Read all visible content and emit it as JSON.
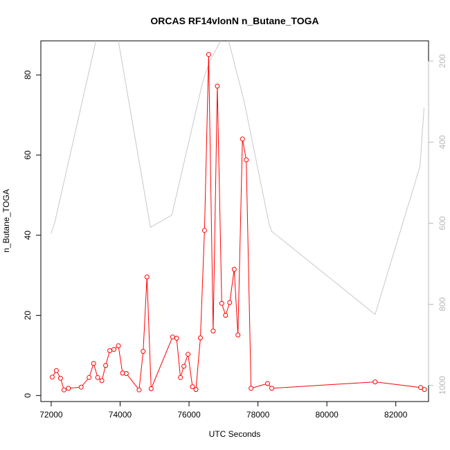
{
  "chart_data": {
    "type": "line",
    "title": "ORCAS RF14vlonN n_Butane_TOGA",
    "xlabel": "UTC Seconds",
    "ylabel": "n_Butane_TOGA",
    "xlim": [
      71700,
      82950
    ],
    "ylim": [
      -1.5,
      88.5
    ],
    "x_ticks": [
      72000,
      74000,
      76000,
      78000,
      80000,
      82000
    ],
    "y_ticks": [
      0,
      20,
      40,
      60,
      80
    ],
    "grid": false,
    "legend": "none",
    "series": [
      {
        "axis": "left",
        "color": "#ff0000",
        "marker": "open-circle",
        "x": [
          72030,
          72150,
          72270,
          72370,
          72500,
          72870,
          73100,
          73230,
          73350,
          73470,
          73580,
          73700,
          73820,
          73950,
          74070,
          74180,
          74550,
          74670,
          74780,
          74900,
          75520,
          75640,
          75750,
          75850,
          75970,
          76100,
          76200,
          76330,
          76450,
          76570,
          76700,
          76820,
          76950,
          77060,
          77180,
          77310,
          77420,
          77550,
          77660,
          77800,
          78280,
          78400,
          81400,
          82720,
          82830
        ],
        "y": [
          4.6,
          6.2,
          4.3,
          1.4,
          1.8,
          2.1,
          4.5,
          8.0,
          4.5,
          3.7,
          7.5,
          11.2,
          11.5,
          12.4,
          5.6,
          5.5,
          1.4,
          11.0,
          29.6,
          1.7,
          14.6,
          14.3,
          4.5,
          7.3,
          10.3,
          2.2,
          1.5,
          14.4,
          41.2,
          85.1,
          16.1,
          77.2,
          23.0,
          20.0,
          23.2,
          31.5,
          15.1,
          64.0,
          58.8,
          1.8,
          3.0,
          1.8,
          3.4,
          2.0,
          1.5
        ]
      },
      {
        "axis": "right",
        "color": "#c8c8c8",
        "marker": "none",
        "x": [
          72000,
          72100,
          73300,
          73420,
          73800,
          73950,
          74880,
          75500,
          76400,
          76600,
          77050,
          77150,
          77600,
          78320,
          78400,
          81400,
          82700,
          82820
        ],
        "y": [
          625,
          600,
          150,
          100,
          100,
          150,
          610,
          580,
          250,
          200,
          130,
          150,
          300,
          600,
          620,
          825,
          460,
          315
        ]
      }
    ],
    "right_axis": {
      "ylim": [
        1040,
        150
      ],
      "ticks": [
        200,
        400,
        600,
        800,
        1000
      ],
      "color": "#b8b8b8"
    }
  }
}
